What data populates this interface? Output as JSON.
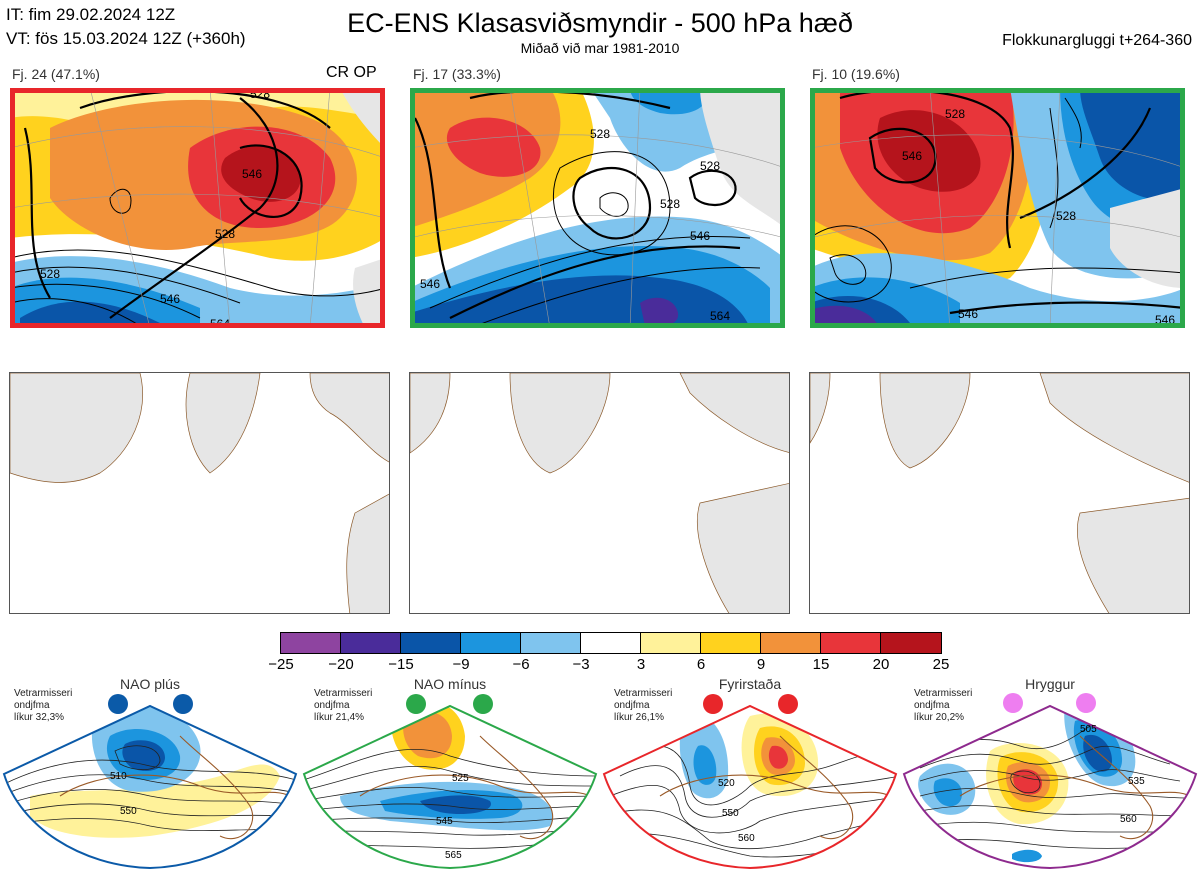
{
  "header": {
    "it_line": "IT: fim 29.02.2024 12Z",
    "vt_line": "VT: fös 15.03.2024 12Z  (+360h)",
    "title": "EC-ENS Klasasviðsmyndir - 500 hPa hæð",
    "subtitle": "Miðað við mar 1981-2010",
    "window": "Flokkunargluggi t+264-360"
  },
  "clusters": [
    {
      "label": "Fj. 24 (47.1%)",
      "frame_color": "#e8262a",
      "note": "CR OP",
      "contours": [
        "528",
        "546",
        "528",
        "546",
        "528",
        "564"
      ]
    },
    {
      "label": "Fj. 17 (33.3%)",
      "frame_color": "#2ba84a",
      "note": "",
      "contours": [
        "528",
        "528",
        "546",
        "546",
        "528",
        "564"
      ]
    },
    {
      "label": "Fj. 10 (19.6%)",
      "frame_color": "#2ba84a",
      "note": "",
      "contours": [
        "528",
        "546",
        "528",
        "546",
        "546"
      ]
    }
  ],
  "colorbar": {
    "colors": [
      "#8e44a0",
      "#4a2c9a",
      "#0a55a8",
      "#1c95de",
      "#7fc4ee",
      "#ffffff",
      "#fff29a",
      "#ffd21e",
      "#f2923a",
      "#e8353a",
      "#b5141c"
    ],
    "ticks": [
      "−25",
      "−20",
      "−15",
      "−9",
      "−6",
      "−3",
      "3",
      "6",
      "9",
      "15",
      "20",
      "25"
    ]
  },
  "regimes": [
    {
      "name": "NAO plús",
      "note": [
        "Vetrarmisseri",
        "ondjfma",
        "líkur 32,3%"
      ],
      "color": "#0b5aa8",
      "labels": [
        "510",
        "550"
      ]
    },
    {
      "name": "NAO mínus",
      "note": [
        "Vetrarmisseri",
        "ondjfma",
        "líkur 21,4%"
      ],
      "color": "#2ba84a",
      "labels": [
        "525",
        "545",
        "565"
      ]
    },
    {
      "name": "Fyrirstaða",
      "note": [
        "Vetrarmisseri",
        "ondjfma",
        "líkur 26,1%"
      ],
      "color": "#e8262a",
      "labels": [
        "520",
        "550",
        "560"
      ]
    },
    {
      "name": "Hryggur",
      "note": [
        "Vetrarmisseri",
        "ondjfma",
        "líkur 20,2%"
      ],
      "color": "#8e2a8e",
      "labels": [
        "505",
        "535",
        "560"
      ]
    }
  ]
}
